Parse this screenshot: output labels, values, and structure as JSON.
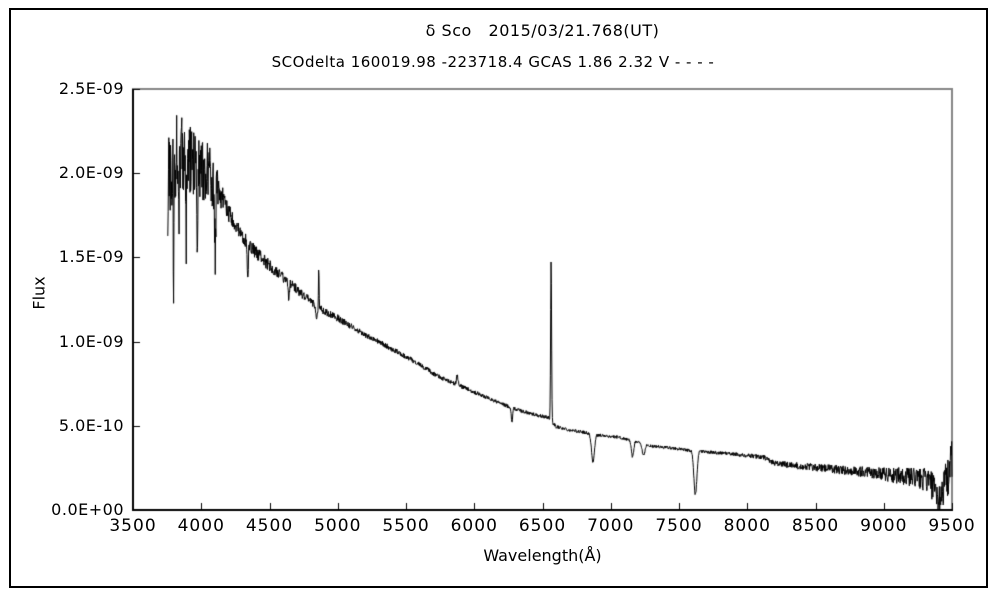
{
  "figure": {
    "background": "#ffffff",
    "border_color": "#000000"
  },
  "chart_data": {
    "type": "line",
    "title": "δ Sco   2015/03/21.768(UT)",
    "subtitle": "SCOdelta 160019.98 -223718.4 GCAS 1.86 2.32 V - - - -",
    "xlabel": "Wavelength(Å)",
    "ylabel": "Flux",
    "xlim": [
      3500,
      9500
    ],
    "ylim": [
      0,
      2.5e-09
    ],
    "xticks": [
      3500,
      4000,
      4500,
      5000,
      5500,
      6000,
      6500,
      7000,
      7500,
      8000,
      8500,
      9000,
      9500
    ],
    "yticks": [
      {
        "value": 0,
        "label": "0.0E+00"
      },
      {
        "value": 5e-10,
        "label": "5.0E-10"
      },
      {
        "value": 1e-09,
        "label": "1.0E-09"
      },
      {
        "value": 1.5e-09,
        "label": "1.5E-09"
      },
      {
        "value": 2e-09,
        "label": "2.0E-09"
      },
      {
        "value": 2.5e-09,
        "label": "2.5E-09"
      }
    ],
    "grid": false,
    "legend": "none",
    "line_color": "#000000",
    "frame_colors": {
      "top": "#848484",
      "right": "#848484",
      "left": "#000000",
      "bottom": "#000000"
    },
    "series": {
      "x_start": 3755,
      "x_end": 9500,
      "sample_step": 2.5,
      "noise_seed": 977,
      "continuum_e9": [
        [
          3755,
          1.9
        ],
        [
          3790,
          2.02
        ],
        [
          3830,
          2.15
        ],
        [
          3880,
          2.1
        ],
        [
          3950,
          2.06
        ],
        [
          4050,
          2.0
        ],
        [
          4120,
          1.92
        ],
        [
          4200,
          1.77
        ],
        [
          4300,
          1.63
        ],
        [
          4400,
          1.53
        ],
        [
          4500,
          1.45
        ],
        [
          4600,
          1.38
        ],
        [
          4700,
          1.31
        ],
        [
          4800,
          1.24
        ],
        [
          4861,
          1.2
        ],
        [
          4950,
          1.16
        ],
        [
          5000,
          1.14
        ],
        [
          5100,
          1.09
        ],
        [
          5200,
          1.04
        ],
        [
          5300,
          1.0
        ],
        [
          5400,
          0.955
        ],
        [
          5500,
          0.91
        ],
        [
          5600,
          0.865
        ],
        [
          5700,
          0.81
        ],
        [
          5800,
          0.77
        ],
        [
          5900,
          0.735
        ],
        [
          6000,
          0.7
        ],
        [
          6100,
          0.665
        ],
        [
          6200,
          0.63
        ],
        [
          6300,
          0.6
        ],
        [
          6400,
          0.575
        ],
        [
          6470,
          0.56
        ],
        [
          6540,
          0.55
        ],
        [
          6600,
          0.495
        ],
        [
          6700,
          0.475
        ],
        [
          6800,
          0.462
        ],
        [
          6950,
          0.44
        ],
        [
          7060,
          0.432
        ],
        [
          7290,
          0.38
        ],
        [
          7450,
          0.368
        ],
        [
          7550,
          0.356
        ],
        [
          7700,
          0.345
        ],
        [
          7900,
          0.332
        ],
        [
          8050,
          0.32
        ],
        [
          8120,
          0.312
        ],
        [
          8200,
          0.278
        ],
        [
          8350,
          0.264
        ],
        [
          8500,
          0.252
        ],
        [
          8700,
          0.238
        ],
        [
          9000,
          0.216
        ],
        [
          9200,
          0.195
        ],
        [
          9350,
          0.175
        ],
        [
          9450,
          0.185
        ],
        [
          9500,
          0.205
        ]
      ],
      "features_e9": [
        [
          3797,
          2,
          -0.6
        ],
        [
          3835,
          3,
          -0.45
        ],
        [
          3889,
          3,
          -0.5
        ],
        [
          3970,
          3,
          -0.55
        ],
        [
          4102,
          4,
          -0.42
        ],
        [
          4340,
          5,
          -0.2
        ],
        [
          4640,
          5,
          -0.09
        ],
        [
          4846,
          6,
          -0.07
        ],
        [
          4861,
          2.5,
          0.25
        ],
        [
          5876,
          7,
          0.05
        ],
        [
          6276,
          5,
          -0.08
        ],
        [
          6563,
          3.5,
          0.95
        ],
        [
          6870,
          11,
          -0.165
        ],
        [
          7160,
          8,
          -0.095
        ],
        [
          7240,
          10,
          -0.07
        ],
        [
          7620,
          11,
          -0.26
        ],
        [
          9400,
          28,
          -0.12
        ],
        [
          9490,
          8,
          0.12
        ]
      ],
      "noise_envelope_e9": [
        [
          3755,
          0.3
        ],
        [
          3850,
          0.22
        ],
        [
          4100,
          0.17
        ],
        [
          4160,
          0.06
        ],
        [
          4300,
          0.045
        ],
        [
          4500,
          0.035
        ],
        [
          4800,
          0.025
        ],
        [
          5200,
          0.016
        ],
        [
          6000,
          0.012
        ],
        [
          7000,
          0.009
        ],
        [
          7600,
          0.009
        ],
        [
          8000,
          0.012
        ],
        [
          8250,
          0.018
        ],
        [
          8600,
          0.025
        ],
        [
          8900,
          0.032
        ],
        [
          9100,
          0.05
        ],
        [
          9250,
          0.06
        ],
        [
          9380,
          0.09
        ],
        [
          9500,
          0.13
        ]
      ]
    }
  }
}
